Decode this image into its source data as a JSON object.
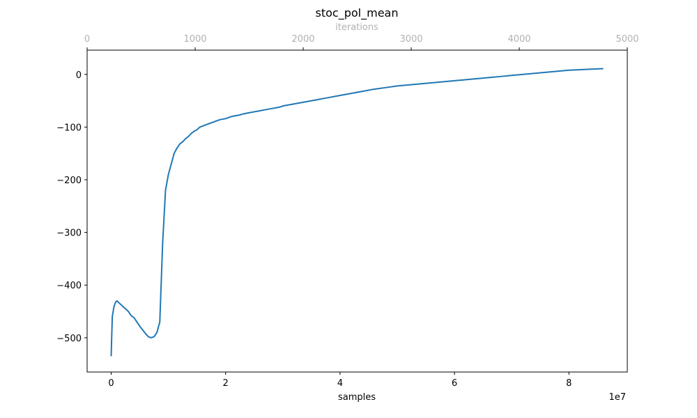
{
  "chart_data": {
    "type": "line",
    "title": "stoc_pol_mean",
    "xlabel": "samples",
    "x_multiplier_label": "1e7",
    "ylabel": "",
    "top_xlabel": "iterations",
    "xlim": [
      -0.42,
      9.02
    ],
    "ylim": [
      -565,
      46
    ],
    "top_xlim": [
      0,
      5000
    ],
    "x_ticks": [
      0,
      2,
      4,
      6,
      8
    ],
    "y_ticks": [
      0,
      -100,
      -200,
      -300,
      -400,
      -500
    ],
    "y_tick_labels": [
      "0",
      "−100",
      "−200",
      "−300",
      "−400",
      "−500"
    ],
    "top_x_ticks": [
      0,
      1000,
      2000,
      3000,
      4000,
      5000
    ],
    "grid": false,
    "series": [
      {
        "color": "#1f77b4",
        "x": [
          0.0,
          0.02,
          0.05,
          0.08,
          0.1,
          0.15,
          0.2,
          0.25,
          0.3,
          0.35,
          0.4,
          0.45,
          0.5,
          0.55,
          0.6,
          0.65,
          0.7,
          0.75,
          0.8,
          0.85,
          0.9,
          0.95,
          1.0,
          1.05,
          1.1,
          1.15,
          1.2,
          1.25,
          1.3,
          1.35,
          1.4,
          1.45,
          1.5,
          1.55,
          1.6,
          1.65,
          1.7,
          1.75,
          1.8,
          1.85,
          1.9,
          1.95,
          2.0,
          2.05,
          2.1,
          2.15,
          2.2,
          2.25,
          2.28,
          2.3,
          2.32,
          2.35,
          2.4,
          2.45,
          2.5,
          2.55,
          2.6,
          2.65,
          2.7,
          2.75,
          2.8,
          2.85,
          2.9,
          2.95,
          3.0,
          3.1,
          3.2,
          3.3,
          3.4,
          3.5,
          3.6,
          3.7,
          3.8,
          3.9,
          4.0,
          4.2,
          4.4,
          4.6,
          4.8,
          5.0,
          5.2,
          5.4,
          5.6,
          5.8,
          6.0,
          6.2,
          6.4,
          6.6,
          6.8,
          7.0,
          7.2,
          7.4,
          7.6,
          7.8,
          8.0,
          8.2,
          8.4,
          8.6
        ],
        "y": [
          -535,
          -460,
          -440,
          -432,
          -430,
          -435,
          -440,
          -445,
          -450,
          -458,
          -462,
          -470,
          -478,
          -485,
          -492,
          -498,
          -500,
          -498,
          -490,
          -470,
          -320,
          -220,
          -190,
          -170,
          -150,
          -140,
          -132,
          -128,
          -122,
          -118,
          -112,
          -108,
          -105,
          -100,
          -98,
          -96,
          -94,
          -92,
          -90,
          -88,
          -86,
          -85,
          -84,
          -82,
          -80,
          -79,
          -78,
          -77,
          -76,
          -75,
          -75,
          -74,
          -73,
          -72,
          -71,
          -70,
          -69,
          -68,
          -67,
          -66,
          -65,
          -64,
          -63,
          -62,
          -60,
          -58,
          -56,
          -54,
          -52,
          -50,
          -48,
          -46,
          -44,
          -42,
          -40,
          -36,
          -32,
          -28,
          -25,
          -22,
          -20,
          -18,
          -16,
          -14,
          -12,
          -10,
          -8,
          -6,
          -4,
          -2,
          0,
          2,
          4,
          6,
          8,
          9,
          10,
          11
        ]
      }
    ]
  }
}
